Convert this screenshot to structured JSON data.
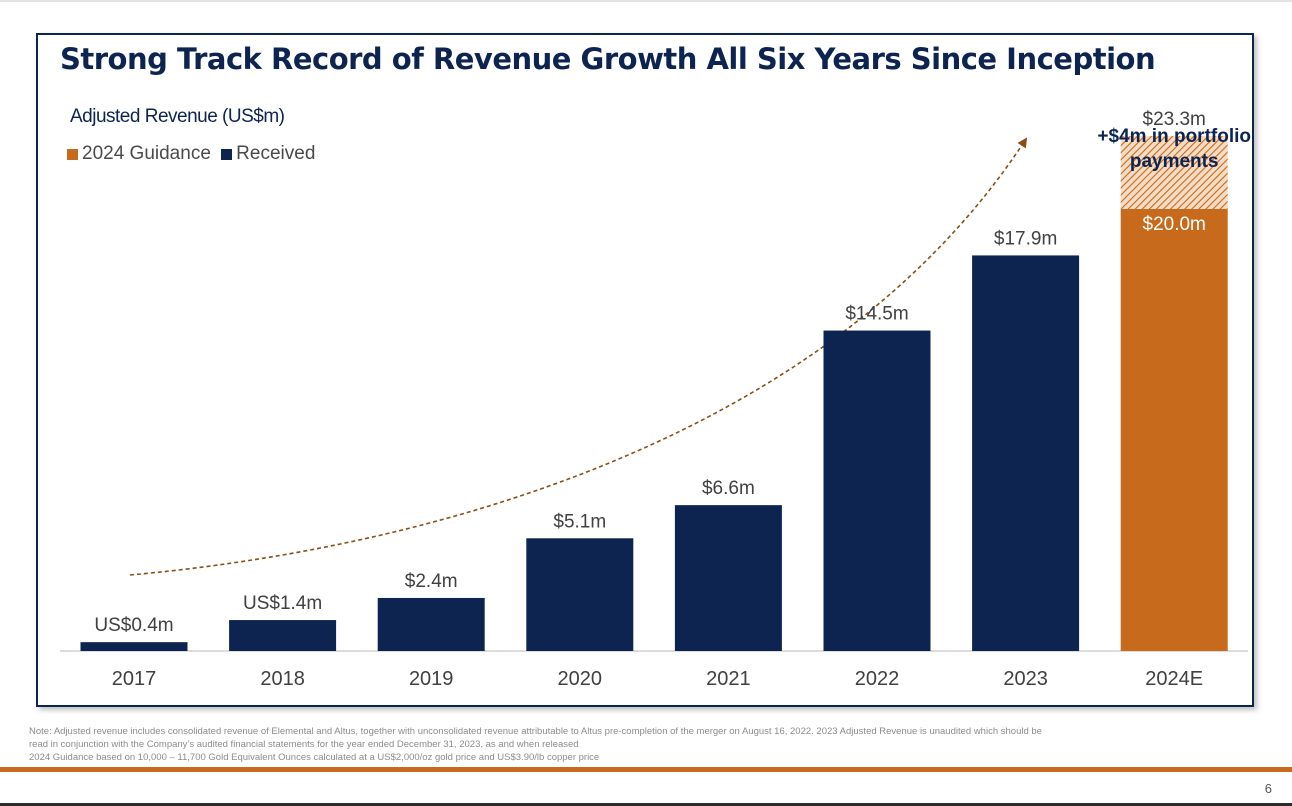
{
  "slide": {
    "title": "Strong Track Record of Revenue Growth All Six Years Since Inception",
    "subtitle": "Adjusted Revenue (US$m)",
    "footnote_lines": [
      "Note: Adjusted revenue includes consolidated revenue of Elemental and Altus, together with unconsolidated revenue attributable to Altus pre-completion of the merger on August 16, 2022. 2023 Adjusted Revenue is unaudited which should be",
      "read in conjunction with the Company’s audited financial statements for the year ended December 31, 2023, as and when released",
      "2024 Guidance based on 10,000 – 11,700 Gold Equivalent Ounces calculated at a US$2,000/oz gold price and US$3.90/lb copper price"
    ],
    "page_number": "6"
  },
  "chart_data": {
    "type": "bar",
    "title": "Strong Track Record of Revenue Growth All Six Years Since Inception",
    "ylabel": "Adjusted Revenue (US$m)",
    "xlabel": "",
    "ylim": [
      0,
      25
    ],
    "grid": false,
    "legend_position": "top-left",
    "categories": [
      "2017",
      "2018",
      "2019",
      "2020",
      "2021",
      "2022",
      "2023",
      "2024E"
    ],
    "series": [
      {
        "name": "Received",
        "color": "#0d2451",
        "values": [
          0.4,
          1.4,
          2.4,
          5.1,
          6.6,
          14.5,
          17.9,
          null
        ],
        "labels": [
          "US$0.4m",
          "US$1.4m",
          "$2.4m",
          "$5.1m",
          "$6.6m",
          "$14.5m",
          "$17.9m",
          ""
        ]
      },
      {
        "name": "2024 Guidance",
        "color": "#c76a1b",
        "values": [
          null,
          null,
          null,
          null,
          null,
          null,
          null,
          20.0
        ],
        "labels": [
          "",
          "",
          "",
          "",
          "",
          "",
          "",
          "$20.0m"
        ],
        "upside_value": 3.3,
        "upside_total": 23.3,
        "upside_total_label": "$23.3m",
        "upside_pattern": "hatched"
      }
    ],
    "annotations": [
      "+$4m in portfolio",
      "payments"
    ],
    "trend_arrow": "dashed curved arrow rising from 2017 toward the 2024E bar"
  }
}
